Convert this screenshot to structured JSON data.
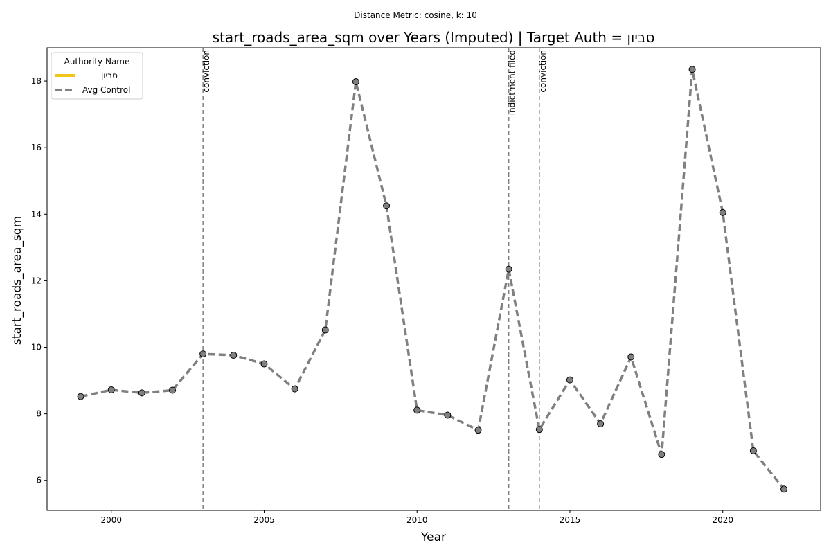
{
  "chart_data": {
    "type": "line",
    "suptitle": "Distance Metric: cosine, k: 10",
    "title": "start_roads_area_sqm over Years (Imputed) | Target Auth = סביון",
    "xlabel": "Year",
    "ylabel": "start_roads_area_sqm",
    "xlim": [
      1997.9,
      2023.2
    ],
    "ylim": [
      5.1,
      19.0
    ],
    "xticks": [
      2000,
      2005,
      2010,
      2015,
      2020
    ],
    "yticks": [
      6,
      8,
      10,
      12,
      14,
      16,
      18
    ],
    "grid": false,
    "legend": {
      "title": "Authority Name",
      "placement": "top-left",
      "entries": [
        {
          "label": "סביון",
          "color": "#f0c419",
          "style": "solid"
        },
        {
          "label": "Avg Control",
          "color": "#808080",
          "style": "dashed"
        }
      ]
    },
    "series": [
      {
        "name": "Avg Control",
        "color": "#808080",
        "style": "dashed",
        "x": [
          1999,
          2000,
          2001,
          2002,
          2003,
          2004,
          2005,
          2006,
          2007,
          2008,
          2009,
          2010,
          2011,
          2012,
          2013,
          2014,
          2015,
          2016,
          2017,
          2018,
          2019,
          2020,
          2021,
          2022
        ],
        "y": [
          8.52,
          8.72,
          8.63,
          8.71,
          9.8,
          9.76,
          9.5,
          8.75,
          10.52,
          17.98,
          14.25,
          8.11,
          7.96,
          7.51,
          12.35,
          7.53,
          9.02,
          7.7,
          9.71,
          6.78,
          18.35,
          14.05,
          6.89,
          5.74
        ]
      }
    ],
    "events": [
      {
        "x": 2003,
        "label": "conviction"
      },
      {
        "x": 2013,
        "label": "indictment filed"
      },
      {
        "x": 2014,
        "label": "conviction"
      }
    ],
    "colors": {
      "line": "#808080",
      "marker_edge": "#000000",
      "event_line": "#808080",
      "target": "#f0c419"
    }
  }
}
